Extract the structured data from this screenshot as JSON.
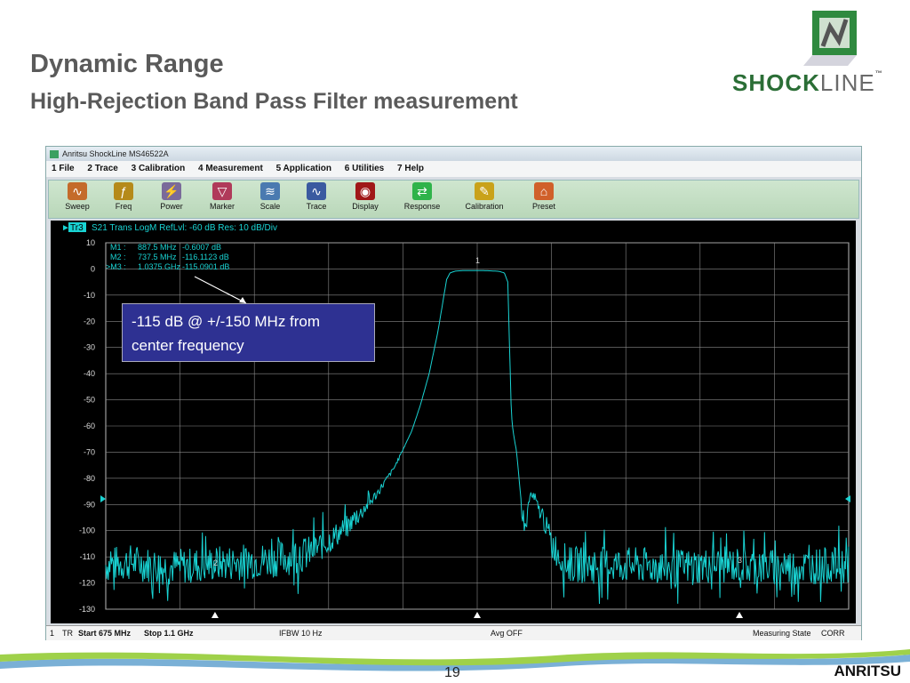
{
  "slide": {
    "title": "Dynamic Range",
    "subtitle": "High-Rejection Band Pass Filter measurement",
    "logo_text_bold": "SHOCK",
    "logo_text_thin": "LINE",
    "logo_tm": "™",
    "page_number": "19",
    "brand": "ANRITSU"
  },
  "app": {
    "window_title": "Anritsu ShockLine MS46522A",
    "menu": [
      "1 File",
      "2 Trace",
      "3 Calibration",
      "4 Measurement",
      "5 Application",
      "6 Utilities",
      "7 Help"
    ],
    "toolbar": [
      {
        "label": "Sweep",
        "icon": "sweep-icon"
      },
      {
        "label": "Freq",
        "icon": "freq-icon"
      },
      {
        "label": "Power",
        "icon": "power-icon"
      },
      {
        "label": "Marker",
        "icon": "marker-icon"
      },
      {
        "label": "Scale",
        "icon": "scale-icon"
      },
      {
        "label": "Trace",
        "icon": "trace-icon"
      },
      {
        "label": "Display",
        "icon": "display-icon"
      },
      {
        "label": "Response",
        "icon": "response-icon"
      },
      {
        "label": "Calibration",
        "icon": "calibration-icon"
      },
      {
        "label": "Preset",
        "icon": "preset-icon"
      }
    ],
    "status": {
      "channel": "1",
      "tr": "TR",
      "start": "Start 675 MHz",
      "stop": "Stop 1.1 GHz",
      "ifbw": "IFBW 10 Hz",
      "avg": "Avg OFF",
      "state": "Measuring State",
      "corr": "CORR"
    }
  },
  "annotation": {
    "line1": "-115 dB @ +/-150 MHz from",
    "line2": "center frequency"
  },
  "chart_data": {
    "type": "line",
    "trace_label": "Tr3",
    "header": "S21 Trans LogM RefLvl: -60  dB Res: 10  dB/Div",
    "xlim": [
      675,
      1100
    ],
    "ylim": [
      -130,
      10
    ],
    "yticks": [
      10,
      0,
      -10,
      -20,
      -30,
      -40,
      -50,
      -60,
      -70,
      -80,
      -90,
      -100,
      -110,
      -120,
      -130
    ],
    "grid": true,
    "trace_color": "#19d3d3",
    "markers": [
      {
        "label": "M1 :",
        "freq": "887.5 MHz",
        "value": "-0.6007  dB"
      },
      {
        "label": "M2 :",
        "freq": "737.5 MHz",
        "value": "-116.1123  dB"
      },
      {
        "label": ">M3 :",
        "freq": "1.0375 GHz",
        "value": "-115.0901  dB"
      }
    ],
    "marker_points": [
      {
        "id": "1",
        "x": 887.5,
        "y": -0.6
      },
      {
        "id": "2",
        "x": 737.5,
        "y": -116.1
      },
      {
        "id": "3",
        "x": 1037.5,
        "y": -115.1
      }
    ],
    "series": [
      {
        "x": [
          675,
          690,
          710,
          730,
          750,
          770,
          790,
          800,
          810,
          820,
          830,
          840,
          850,
          855,
          860,
          865,
          868,
          870,
          872,
          875,
          880,
          887.5,
          895,
          900,
          903,
          905,
          906,
          907,
          908,
          910,
          912,
          915,
          917,
          918,
          920,
          925,
          930,
          935,
          940,
          950,
          970,
          1000,
          1030,
          1060,
          1100
        ],
        "y": [
          -113,
          -112,
          -114,
          -113,
          -112,
          -111,
          -109,
          -105,
          -100,
          -94,
          -86,
          -76,
          -62,
          -52,
          -40,
          -24,
          -12,
          -4,
          -1.5,
          -0.8,
          -0.6,
          -0.6,
          -0.7,
          -0.9,
          -1.5,
          -5,
          -30,
          -55,
          -62,
          -70,
          -85,
          -100,
          -90,
          -86,
          -88,
          -95,
          -104,
          -110,
          -113,
          -113,
          -113,
          -114,
          -113,
          -114,
          -113
        ]
      }
    ]
  }
}
